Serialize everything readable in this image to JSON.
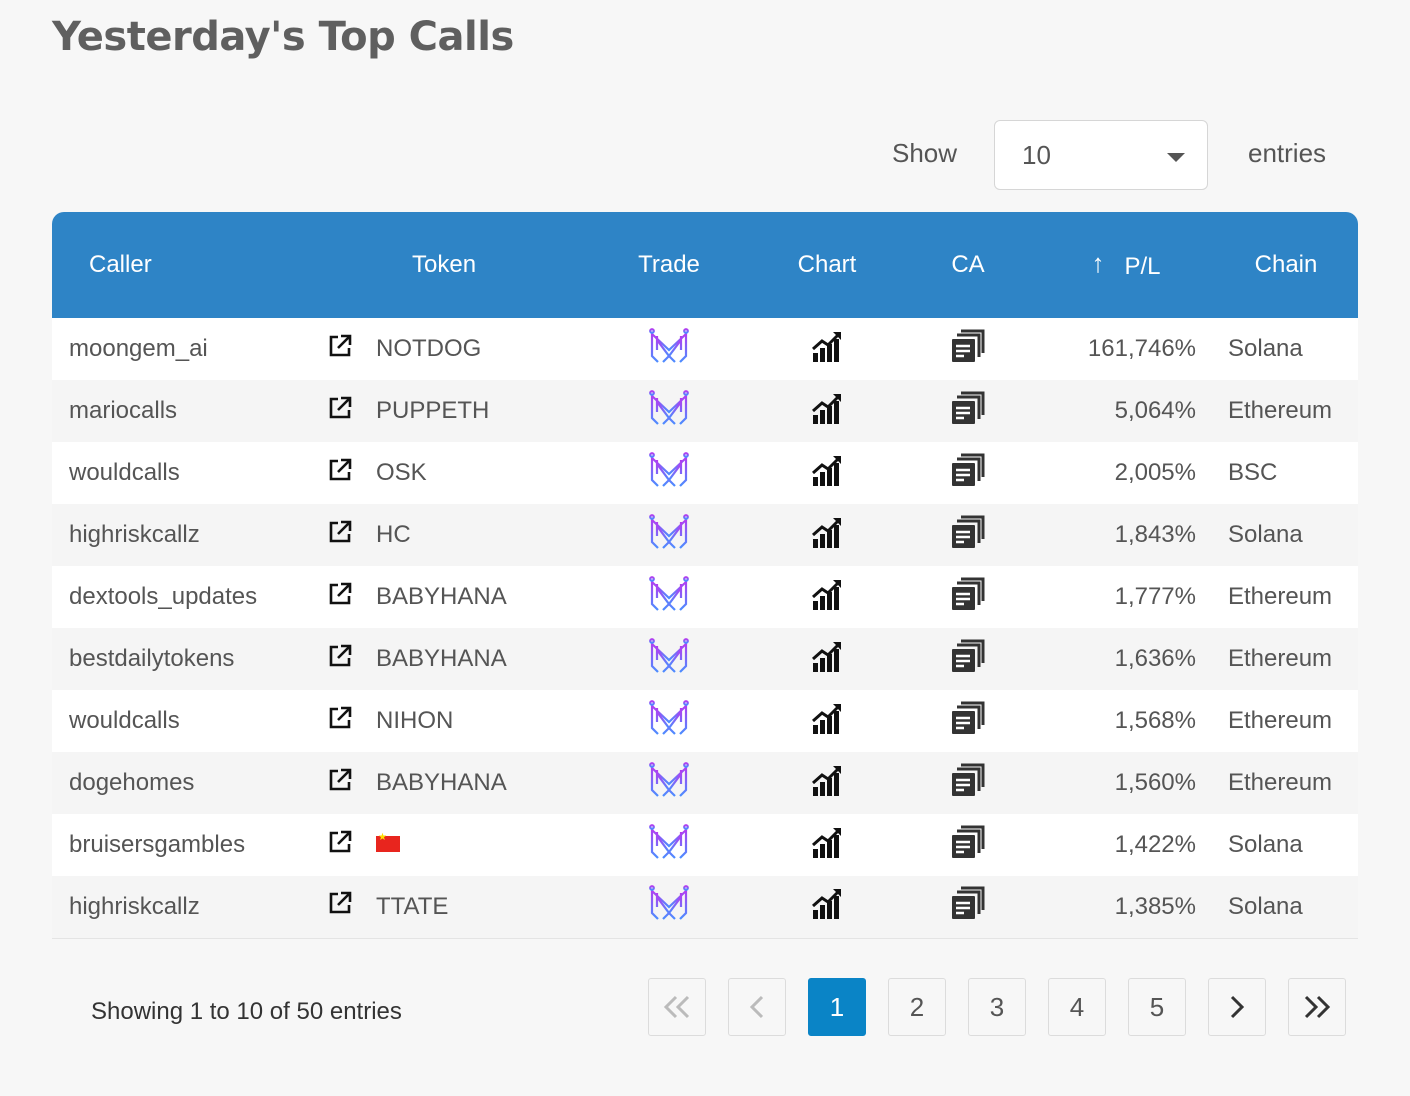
{
  "page": {
    "title": "Yesterday's Top Calls"
  },
  "length": {
    "show_label": "Show",
    "value": "10",
    "entries_label": "entries"
  },
  "table": {
    "headers": {
      "caller": "Caller",
      "token": "Token",
      "trade": "Trade",
      "chart": "Chart",
      "ca": "CA",
      "pl": "P/L",
      "chain": "Chain"
    },
    "sort_icon": "arrow-up-icon",
    "icons": {
      "link": "external-link-icon",
      "trade": "trade-logo-icon",
      "chart": "chart-growth-icon",
      "ca": "copy-icon"
    },
    "rows": [
      {
        "caller": "moongem_ai",
        "token": "NOTDOG",
        "pl": "161,746%",
        "chain": "Solana"
      },
      {
        "caller": "mariocalls",
        "token": "PUPPETH",
        "pl": "5,064%",
        "chain": "Ethereum"
      },
      {
        "caller": "wouldcalls",
        "token": "OSK",
        "pl": "2,005%",
        "chain": "BSC"
      },
      {
        "caller": "highriskcallz",
        "token": "HC",
        "pl": "1,843%",
        "chain": "Solana"
      },
      {
        "caller": "dextools_updates",
        "token": "BABYHANA",
        "pl": "1,777%",
        "chain": "Ethereum"
      },
      {
        "caller": "bestdailytokens",
        "token": "BABYHANA",
        "pl": "1,636%",
        "chain": "Ethereum"
      },
      {
        "caller": "wouldcalls",
        "token": "NIHON",
        "pl": "1,568%",
        "chain": "Ethereum"
      },
      {
        "caller": "dogehomes",
        "token": "BABYHANA",
        "pl": "1,560%",
        "chain": "Ethereum"
      },
      {
        "caller": "bruisersgambles",
        "token": "",
        "token_icon": "china-flag-icon",
        "pl": "1,422%",
        "chain": "Solana"
      },
      {
        "caller": "highriskcallz",
        "token": "TTATE",
        "pl": "1,385%",
        "chain": "Solana"
      }
    ]
  },
  "footer": {
    "info": "Showing 1 to 10 of 50 entries",
    "pages": [
      "1",
      "2",
      "3",
      "4",
      "5"
    ],
    "active_page": "1"
  },
  "colors": {
    "header_bg": "#2e84c6",
    "active_page": "#0a84c6",
    "trade_gradient": [
      "#b53cf0",
      "#4c8dff"
    ]
  }
}
